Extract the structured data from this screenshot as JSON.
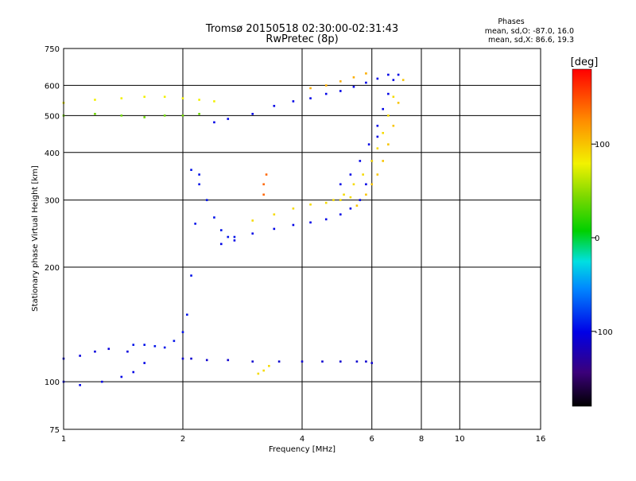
{
  "chart_data": {
    "type": "scatter",
    "title": "Tromsø 20150518 02:30:00-02:31:43",
    "subtitle": "RwPretec (8p)",
    "xlabel": "Frequency [MHz]",
    "ylabel": "Stationary phase Virtual Height [km]",
    "x_scale": "log",
    "y_scale": "log",
    "xlim": [
      1,
      16
    ],
    "ylim": [
      75,
      750
    ],
    "x_ticks": [
      1,
      2,
      4,
      6,
      8,
      10,
      16
    ],
    "x_tick_labels": [
      "1",
      "2",
      "4",
      "6",
      "8",
      "10",
      "16"
    ],
    "y_ticks": [
      75,
      100,
      200,
      300,
      400,
      500,
      600,
      750
    ],
    "y_tick_labels": [
      "75",
      "100",
      "200",
      "300",
      "400",
      "500",
      "600",
      "750"
    ],
    "grid": true,
    "stats": {
      "heading": "Phases",
      "line1": "mean, sd,O:  -87.0, 16.0",
      "line2": "mean, sd,X:  86.6, 19.3"
    },
    "colorbar": {
      "label": "[deg]",
      "range": [
        -180,
        180
      ],
      "ticks": [
        100,
        0,
        -100
      ],
      "tick_labels": [
        "100",
        "0",
        "-100"
      ]
    },
    "traces": [
      {
        "x": [
          1.0,
          1.1,
          1.25,
          1.4,
          1.5,
          1.6
        ],
        "y": [
          100,
          98,
          100,
          103,
          106,
          112
        ],
        "phase": -100
      },
      {
        "x": [
          1.0,
          1.1,
          1.2,
          1.3,
          1.45
        ],
        "y": [
          115,
          117,
          120,
          122,
          120
        ],
        "phase": -105
      },
      {
        "x": [
          1.5,
          1.6,
          1.7,
          1.8,
          1.9,
          2.0,
          2.05,
          2.1,
          2.15,
          2.2
        ],
        "y": [
          125,
          125,
          124,
          123,
          128,
          135,
          150,
          190,
          260,
          350
        ],
        "phase": -95
      },
      {
        "x": [
          2.0,
          2.1,
          2.3,
          2.6,
          3.0,
          3.5,
          4.0,
          4.5,
          5.0,
          5.5,
          5.8,
          6.0
        ],
        "y": [
          115,
          115,
          114,
          114,
          113,
          113,
          113,
          113,
          113,
          113,
          113,
          112
        ],
        "phase": -110
      },
      {
        "x": [
          2.1,
          2.2,
          2.3,
          2.4,
          2.5,
          2.6,
          2.7
        ],
        "y": [
          360,
          330,
          300,
          270,
          250,
          240,
          240
        ],
        "phase": -95
      },
      {
        "x": [
          2.5,
          2.7,
          3.0,
          3.4,
          3.8,
          4.2,
          4.6,
          5.0,
          5.3,
          5.6,
          5.8,
          6.0,
          6.2
        ],
        "y": [
          230,
          235,
          245,
          252,
          258,
          262,
          267,
          275,
          285,
          300,
          330,
          380,
          440
        ],
        "phase": -100
      },
      {
        "x": [
          3.0,
          3.4,
          3.8,
          4.2,
          4.6,
          5.0,
          5.3
        ],
        "y": [
          265,
          275,
          285,
          292,
          295,
          300,
          305
        ],
        "phase": 90
      },
      {
        "x": [
          4.8,
          5.1,
          5.4,
          5.7,
          6.0,
          6.2,
          6.4,
          6.6,
          6.8
        ],
        "y": [
          300,
          310,
          330,
          350,
          380,
          410,
          450,
          500,
          560
        ],
        "phase": 90
      },
      {
        "x": [
          5.5,
          5.8,
          6.0,
          6.2,
          6.4,
          6.6,
          6.8,
          7.0,
          7.2
        ],
        "y": [
          290,
          310,
          330,
          350,
          380,
          420,
          470,
          540,
          620
        ],
        "phase": 100
      },
      {
        "x": [
          5.0,
          5.3,
          5.6,
          5.9,
          6.2,
          6.4,
          6.6,
          6.8,
          7.0
        ],
        "y": [
          330,
          350,
          380,
          420,
          470,
          520,
          570,
          620,
          640
        ],
        "phase": -100
      },
      {
        "x": [
          2.4,
          2.6,
          3.0,
          3.4,
          3.8,
          4.2,
          4.6,
          5.0,
          5.4,
          5.8,
          6.2,
          6.6
        ],
        "y": [
          480,
          490,
          505,
          530,
          545,
          555,
          570,
          580,
          595,
          610,
          625,
          640
        ],
        "phase": -100
      },
      {
        "x": [
          1.0,
          1.2,
          1.4,
          1.6,
          1.8,
          2.0,
          2.2,
          2.4
        ],
        "y": [
          540,
          550,
          555,
          560,
          560,
          555,
          550,
          545
        ],
        "phase": 80
      },
      {
        "x": [
          1.0,
          1.2,
          1.4,
          1.6,
          1.8,
          2.0,
          2.2
        ],
        "y": [
          500,
          505,
          500,
          495,
          500,
          500,
          505
        ],
        "phase": 40
      },
      {
        "x": [
          4.2,
          4.6,
          5.0,
          5.4,
          5.8
        ],
        "y": [
          590,
          600,
          615,
          630,
          645
        ],
        "phase": 110
      },
      {
        "x": [
          3.1,
          3.2,
          3.3
        ],
        "y": [
          105,
          107,
          110
        ],
        "phase": 90
      },
      {
        "x": [
          3.2,
          3.2,
          3.25
        ],
        "y": [
          310,
          330,
          350
        ],
        "phase": 140
      }
    ]
  }
}
